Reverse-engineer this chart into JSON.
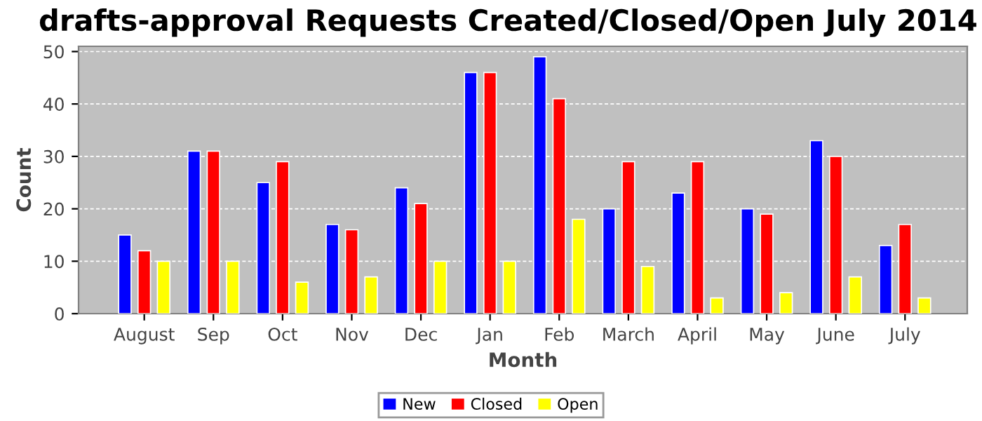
{
  "chart_data": {
    "type": "bar",
    "title": "drafts-approval Requests Created/Closed/Open July 2014",
    "xlabel": "Month",
    "ylabel": "Count",
    "categories": [
      "August",
      "Sep",
      "Oct",
      "Nov",
      "Dec",
      "Jan",
      "Feb",
      "March",
      "April",
      "May",
      "June",
      "July"
    ],
    "series": [
      {
        "name": "New",
        "color": "#0000ff",
        "values": [
          15,
          31,
          25,
          17,
          24,
          46,
          49,
          20,
          23,
          20,
          33,
          13
        ]
      },
      {
        "name": "Closed",
        "color": "#ff0000",
        "values": [
          12,
          31,
          29,
          16,
          21,
          46,
          41,
          29,
          29,
          19,
          30,
          17
        ]
      },
      {
        "name": "Open",
        "color": "#ffff00",
        "values": [
          10,
          10,
          6,
          7,
          10,
          10,
          18,
          9,
          3,
          4,
          7,
          3
        ]
      }
    ],
    "ylim": [
      0,
      51
    ],
    "yticks": [
      0,
      10,
      20,
      30,
      40,
      50
    ],
    "grid": "y",
    "legend": "bottom"
  }
}
